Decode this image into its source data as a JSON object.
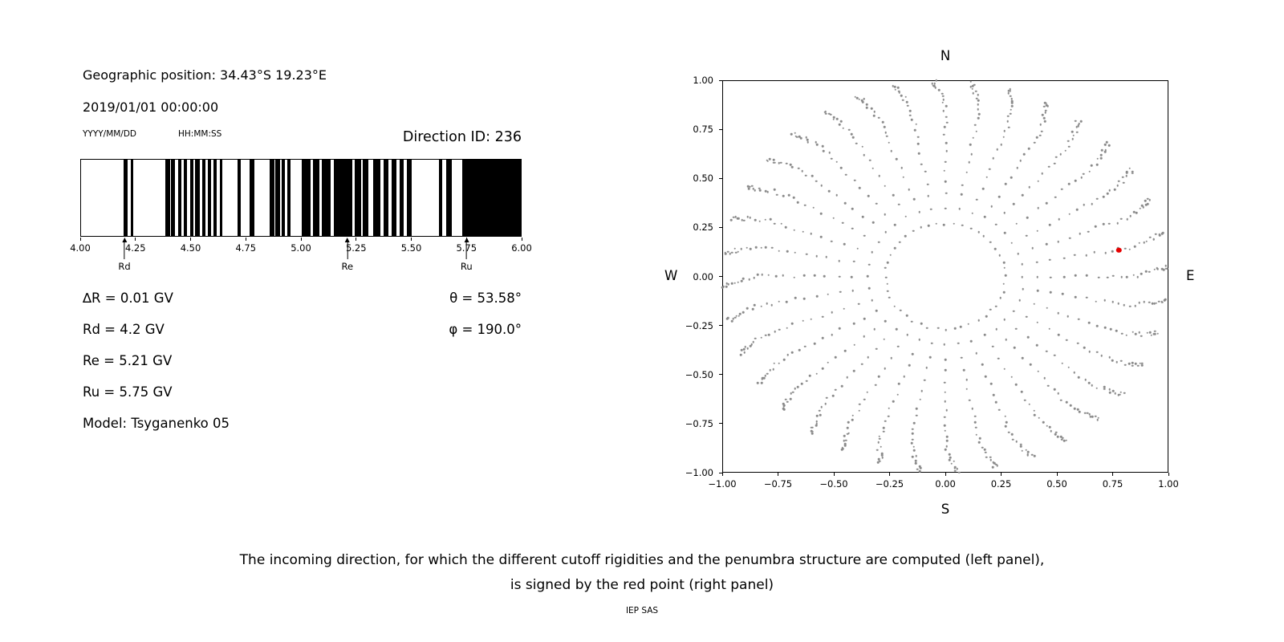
{
  "left_panel": {
    "geo_position": "Geographic position: 34.43°S 19.23°E",
    "datetime": "2019/01/01 00:00:00",
    "date_format_hint": "YYYY/MM/DD",
    "time_format_hint": "HH:MM:SS",
    "direction_id": "Direction ID: 236",
    "params_left": [
      "∆R = 0.01 GV",
      "Rd = 4.2 GV",
      "Re = 5.21 GV",
      "Ru = 5.75 GV",
      "Model: Tsyganenko 05"
    ],
    "params_right": [
      "θ = 53.58°",
      "φ = 190.0°"
    ]
  },
  "chart_data": [
    {
      "type": "bar",
      "name": "penumbra-structure",
      "x_range": [
        4.0,
        6.0
      ],
      "x_tick_values": [
        4.0,
        4.25,
        4.5,
        4.75,
        5.0,
        5.25,
        5.5,
        5.75,
        6.0
      ],
      "x_tick_labels": [
        "4.00",
        "4.25",
        "4.50",
        "4.75",
        "5.00",
        "5.25",
        "5.50",
        "5.75",
        "6.00"
      ],
      "bar_color": "#000000",
      "forbidden_bands_gv": [
        [
          4.195,
          4.212
        ],
        [
          4.226,
          4.238
        ],
        [
          4.385,
          4.405
        ],
        [
          4.408,
          4.428
        ],
        [
          4.44,
          4.455
        ],
        [
          4.468,
          4.482
        ],
        [
          4.498,
          4.512
        ],
        [
          4.518,
          4.54
        ],
        [
          4.55,
          4.565
        ],
        [
          4.578,
          4.592
        ],
        [
          4.603,
          4.617
        ],
        [
          4.63,
          4.644
        ],
        [
          4.712,
          4.726
        ],
        [
          4.768,
          4.788
        ],
        [
          4.858,
          4.878
        ],
        [
          4.884,
          4.904
        ],
        [
          4.912,
          4.928
        ],
        [
          4.938,
          4.952
        ],
        [
          5.002,
          5.045
        ],
        [
          5.055,
          5.085
        ],
        [
          5.095,
          5.135
        ],
        [
          5.148,
          5.235
        ],
        [
          5.245,
          5.272
        ],
        [
          5.282,
          5.305
        ],
        [
          5.327,
          5.362
        ],
        [
          5.375,
          5.398
        ],
        [
          5.412,
          5.435
        ],
        [
          5.448,
          5.468
        ],
        [
          5.482,
          5.502
        ],
        [
          5.627,
          5.642
        ],
        [
          5.662,
          5.688
        ],
        [
          5.732,
          6.0
        ]
      ],
      "markers": [
        {
          "label": "Rd",
          "x": 4.2
        },
        {
          "label": "Re",
          "x": 5.21
        },
        {
          "label": "Ru",
          "x": 5.75
        }
      ]
    },
    {
      "type": "scatter",
      "name": "incoming-direction-map",
      "xlim": [
        -1,
        1
      ],
      "ylim": [
        -1,
        1
      ],
      "x_tick_values": [
        -1,
        -0.75,
        -0.5,
        -0.25,
        0,
        0.25,
        0.5,
        0.75,
        1
      ],
      "x_tick_labels": [
        "−1.00",
        "−0.75",
        "−0.50",
        "−0.25",
        "0.00",
        "0.25",
        "0.50",
        "0.75",
        "1.00"
      ],
      "y_tick_values": [
        1,
        0.75,
        0.5,
        0.25,
        0,
        -0.25,
        -0.5,
        -0.75,
        -1
      ],
      "y_tick_labels": [
        "1.00",
        "0.75",
        "0.50",
        "0.25",
        "0.00",
        "−0.25",
        "−0.50",
        "−0.75",
        "−1.00"
      ],
      "compass_labels": {
        "top": "N",
        "bottom": "S",
        "left": "W",
        "right": "E"
      },
      "dot_color": "#8a8a8a",
      "inner_ring": {
        "radius": 0.27,
        "count": 44
      },
      "spoke_angles_deg": [
        0,
        10,
        20,
        30,
        40,
        50,
        60,
        70,
        80,
        90,
        100,
        110,
        120,
        130,
        140,
        150,
        160,
        170,
        180,
        190,
        200,
        210,
        220,
        230,
        240,
        250,
        260,
        270,
        280,
        290,
        300,
        310,
        320,
        330,
        340,
        350
      ],
      "spoke_radii": [
        0.35,
        0.42,
        0.48,
        0.54,
        0.59,
        0.64,
        0.685,
        0.725,
        0.76,
        0.79,
        0.818,
        0.843,
        0.866,
        0.887,
        0.906,
        0.923,
        0.938,
        0.951,
        0.962,
        0.972,
        0.981,
        0.988,
        0.994,
        1.0
      ],
      "red_point": {
        "x": 0.78,
        "y": 0.135,
        "color": "#e60000"
      }
    }
  ],
  "caption": {
    "line1": "The incoming direction, for which the different cutoff rigidities and the penumbra structure are computed (left panel),",
    "line2": "is signed by the red point (right panel)",
    "credit": "IEP SAS"
  }
}
